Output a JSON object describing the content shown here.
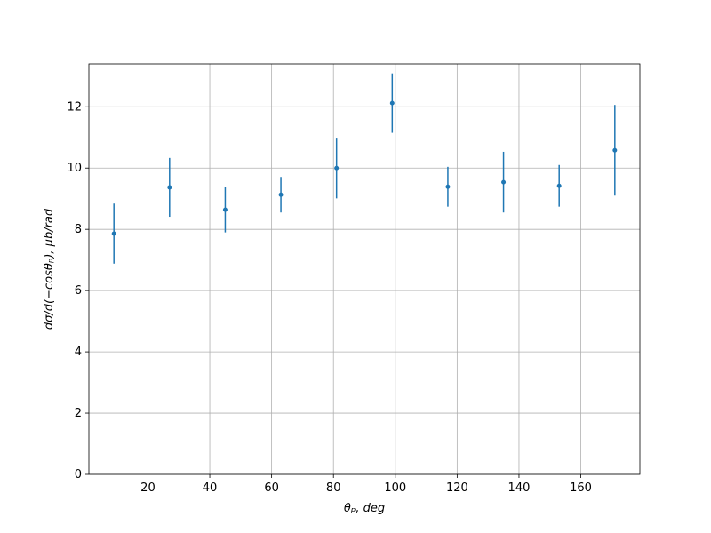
{
  "chart_data": {
    "type": "errorbar",
    "x_label": "θₚ, deg",
    "y_label": "dσ/d(−cosθₚ), μb/rad",
    "series": [
      {
        "color": "#1f77b4",
        "x": [
          9,
          27,
          45,
          63,
          81,
          99,
          117,
          135,
          153,
          171
        ],
        "values": [
          7.86,
          9.37,
          8.64,
          9.13,
          10.0,
          12.12,
          9.39,
          9.54,
          9.42,
          10.58
        ],
        "errors": [
          0.98,
          0.96,
          0.74,
          0.58,
          0.99,
          0.97,
          0.65,
          0.99,
          0.68,
          1.48
        ]
      }
    ],
    "xlim": [
      0.9,
      179.1
    ],
    "xticks": [
      20,
      40,
      60,
      80,
      100,
      120,
      140,
      160
    ],
    "ylim": [
      0,
      13.4
    ],
    "yticks": [
      0,
      2,
      4,
      6,
      8,
      10,
      12
    ],
    "grid": true
  }
}
